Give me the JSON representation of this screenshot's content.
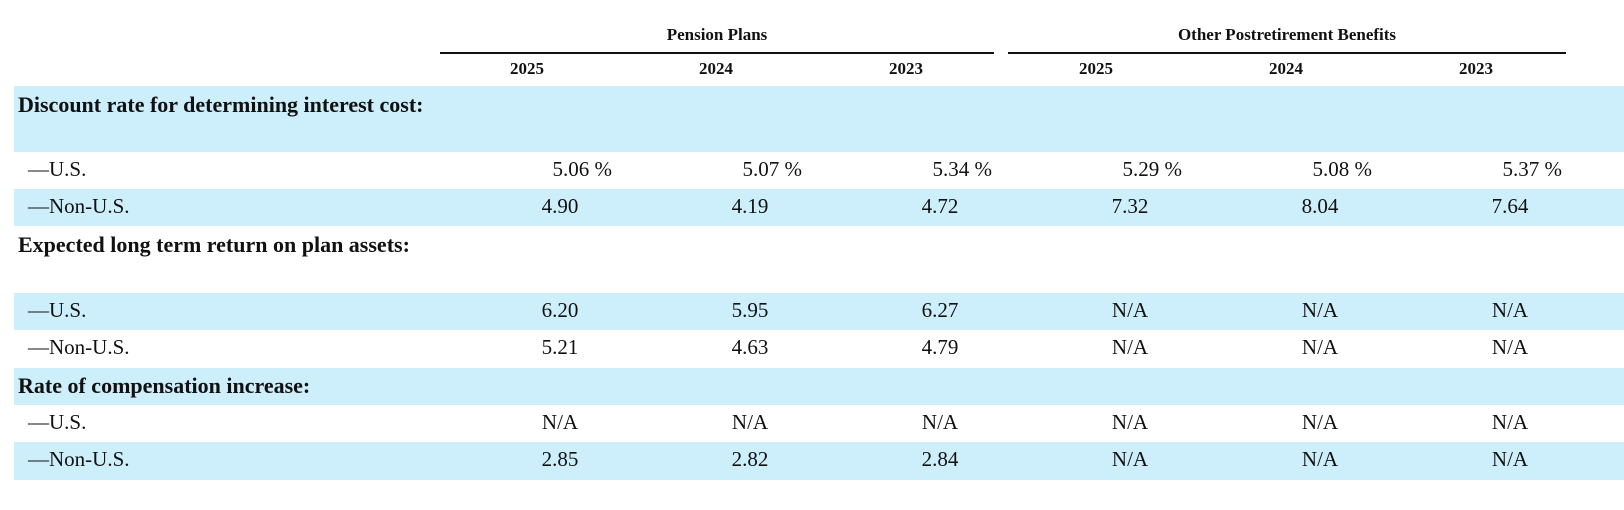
{
  "headers": {
    "groups": [
      "Pension Plans",
      "Other Postretirement Benefits"
    ],
    "years": [
      "2025",
      "2024",
      "2023",
      "2025",
      "2024",
      "2023"
    ]
  },
  "sections": [
    {
      "label": "Discount rate for determining interest cost:",
      "rows": [
        {
          "label": "—U.S.",
          "values": [
            "5.06 %",
            "5.07 %",
            "5.34 %",
            "5.29 %",
            "5.08 %",
            "5.37 %"
          ]
        },
        {
          "label": "—Non-U.S.",
          "values": [
            "4.90",
            "4.19",
            "4.72",
            "7.32",
            "8.04",
            "7.64"
          ]
        }
      ]
    },
    {
      "label": "Expected long term return on plan assets:",
      "rows": [
        {
          "label": "—U.S.",
          "values": [
            "6.20",
            "5.95",
            "6.27",
            "N/A",
            "N/A",
            "N/A"
          ]
        },
        {
          "label": "—Non-U.S.",
          "values": [
            "5.21",
            "4.63",
            "4.79",
            "N/A",
            "N/A",
            "N/A"
          ]
        }
      ]
    },
    {
      "label": "Rate of compensation increase:",
      "rows": [
        {
          "label": "—U.S.",
          "values": [
            "N/A",
            "N/A",
            "N/A",
            "N/A",
            "N/A",
            "N/A"
          ]
        },
        {
          "label": "—Non-U.S.",
          "values": [
            "2.85",
            "2.82",
            "2.84",
            "N/A",
            "N/A",
            "N/A"
          ]
        }
      ]
    }
  ]
}
